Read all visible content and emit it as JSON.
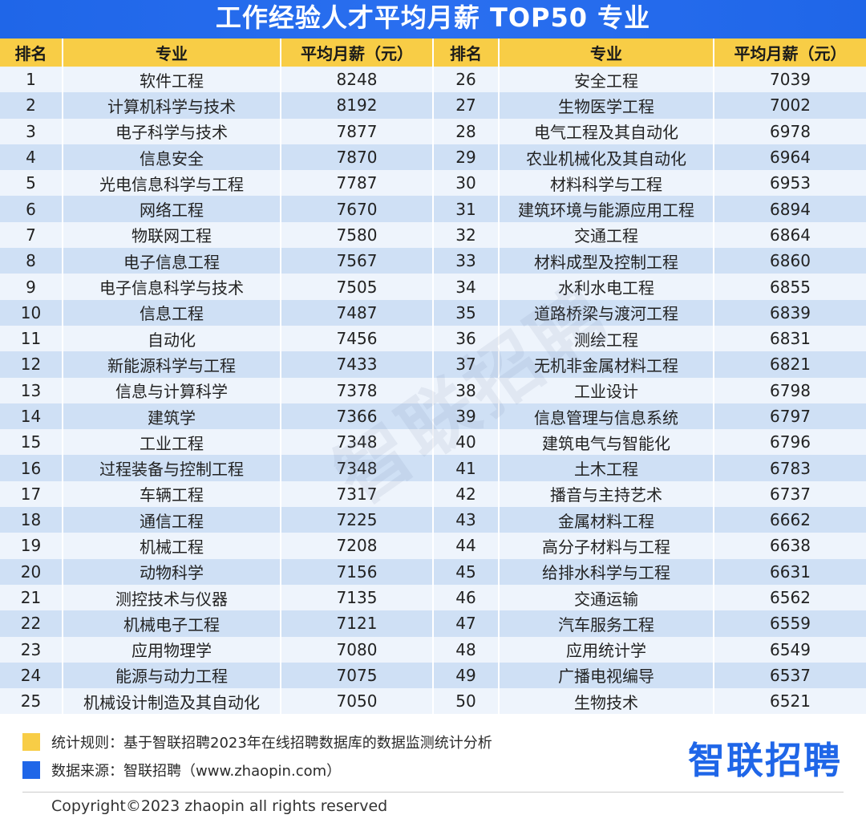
{
  "title": "工作经验人才平均月薪 TOP50 专业",
  "chart_data": {
    "type": "table",
    "columns": [
      "排名",
      "专业",
      "平均月薪（元）",
      "排名",
      "专业",
      "平均月薪（元）"
    ],
    "rows": [
      {
        "rank": 1,
        "major": "软件工程",
        "salary": 8248
      },
      {
        "rank": 2,
        "major": "计算机科学与技术",
        "salary": 8192
      },
      {
        "rank": 3,
        "major": "电子科学与技术",
        "salary": 7877
      },
      {
        "rank": 4,
        "major": "信息安全",
        "salary": 7870
      },
      {
        "rank": 5,
        "major": "光电信息科学与工程",
        "salary": 7787
      },
      {
        "rank": 6,
        "major": "网络工程",
        "salary": 7670
      },
      {
        "rank": 7,
        "major": "物联网工程",
        "salary": 7580
      },
      {
        "rank": 8,
        "major": "电子信息工程",
        "salary": 7567
      },
      {
        "rank": 9,
        "major": "电子信息科学与技术",
        "salary": 7505
      },
      {
        "rank": 10,
        "major": "信息工程",
        "salary": 7487
      },
      {
        "rank": 11,
        "major": "自动化",
        "salary": 7456
      },
      {
        "rank": 12,
        "major": "新能源科学与工程",
        "salary": 7433
      },
      {
        "rank": 13,
        "major": "信息与计算科学",
        "salary": 7378
      },
      {
        "rank": 14,
        "major": "建筑学",
        "salary": 7366
      },
      {
        "rank": 15,
        "major": "工业工程",
        "salary": 7348
      },
      {
        "rank": 16,
        "major": "过程装备与控制工程",
        "salary": 7348
      },
      {
        "rank": 17,
        "major": "车辆工程",
        "salary": 7317
      },
      {
        "rank": 18,
        "major": "通信工程",
        "salary": 7225
      },
      {
        "rank": 19,
        "major": "机械工程",
        "salary": 7208
      },
      {
        "rank": 20,
        "major": "动物科学",
        "salary": 7156
      },
      {
        "rank": 21,
        "major": "测控技术与仪器",
        "salary": 7135
      },
      {
        "rank": 22,
        "major": "机械电子工程",
        "salary": 7121
      },
      {
        "rank": 23,
        "major": "应用物理学",
        "salary": 7080
      },
      {
        "rank": 24,
        "major": "能源与动力工程",
        "salary": 7075
      },
      {
        "rank": 25,
        "major": "机械设计制造及其自动化",
        "salary": 7050
      },
      {
        "rank": 26,
        "major": "安全工程",
        "salary": 7039
      },
      {
        "rank": 27,
        "major": "生物医学工程",
        "salary": 7002
      },
      {
        "rank": 28,
        "major": "电气工程及其自动化",
        "salary": 6978
      },
      {
        "rank": 29,
        "major": "农业机械化及其自动化",
        "salary": 6964
      },
      {
        "rank": 30,
        "major": "材料科学与工程",
        "salary": 6953
      },
      {
        "rank": 31,
        "major": "建筑环境与能源应用工程",
        "salary": 6894
      },
      {
        "rank": 32,
        "major": "交通工程",
        "salary": 6864
      },
      {
        "rank": 33,
        "major": "材料成型及控制工程",
        "salary": 6860
      },
      {
        "rank": 34,
        "major": "水利水电工程",
        "salary": 6855
      },
      {
        "rank": 35,
        "major": "道路桥梁与渡河工程",
        "salary": 6839
      },
      {
        "rank": 36,
        "major": "测绘工程",
        "salary": 6831
      },
      {
        "rank": 37,
        "major": "无机非金属材料工程",
        "salary": 6821
      },
      {
        "rank": 38,
        "major": "工业设计",
        "salary": 6798
      },
      {
        "rank": 39,
        "major": "信息管理与信息系统",
        "salary": 6797
      },
      {
        "rank": 40,
        "major": "建筑电气与智能化",
        "salary": 6796
      },
      {
        "rank": 41,
        "major": "土木工程",
        "salary": 6783
      },
      {
        "rank": 42,
        "major": "播音与主持艺术",
        "salary": 6737
      },
      {
        "rank": 43,
        "major": "金属材料工程",
        "salary": 6662
      },
      {
        "rank": 44,
        "major": "高分子材料与工程",
        "salary": 6638
      },
      {
        "rank": 45,
        "major": "给排水科学与工程",
        "salary": 6631
      },
      {
        "rank": 46,
        "major": "交通运输",
        "salary": 6562
      },
      {
        "rank": 47,
        "major": "汽车服务工程",
        "salary": 6559
      },
      {
        "rank": 48,
        "major": "应用统计学",
        "salary": 6549
      },
      {
        "rank": 49,
        "major": "广播电视编导",
        "salary": 6537
      },
      {
        "rank": 50,
        "major": "生物技术",
        "salary": 6521
      }
    ]
  },
  "watermark": "智联招聘",
  "footer": {
    "rule_text": "统计规则：基于智联招聘2023年在线招聘数据库的数据监测统计分析",
    "source_text": "数据来源：智联招聘（www.zhaopin.com）",
    "brand": "智联招聘",
    "copyright": "Copyright©2023 zhaopin all rights reserved"
  },
  "colors": {
    "title_bg": "#1f66e8",
    "header_bg": "#f8cd46",
    "row_light": "#eef4fc",
    "row_dark": "#cfe0f5",
    "brand": "#1f66e8"
  }
}
